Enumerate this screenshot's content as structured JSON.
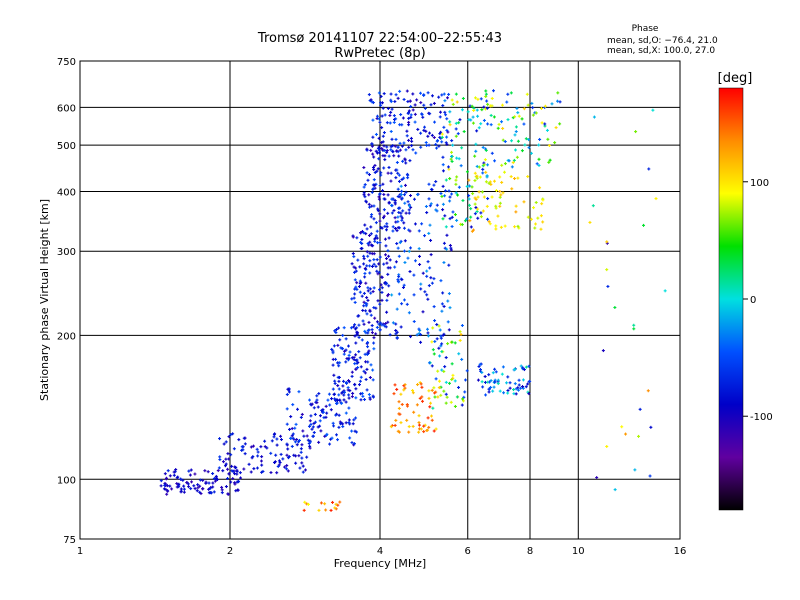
{
  "chart_data": {
    "type": "scatter",
    "title": "Tromsø 20141107 22:54:00–22:55:43",
    "subtitle": "RwPretec (8p)",
    "xlabel": "Frequency [MHz]",
    "ylabel": "Stationary phase Virtual Height [km]",
    "x_scale": "log",
    "y_scale": "log",
    "xlim": [
      1,
      16
    ],
    "ylim": [
      75,
      750
    ],
    "x_ticks": [
      1,
      2,
      4,
      6,
      8,
      10,
      16
    ],
    "y_ticks": [
      75,
      100,
      200,
      300,
      400,
      500,
      600,
      750
    ],
    "grid": true,
    "phase_box": {
      "heading": "Phase",
      "line1": "mean, sd,O: −76.4, 21.0",
      "line2": "mean, sd,X: 100.0, 27.0"
    },
    "colorbar": {
      "label": "[deg]",
      "range": [
        -180,
        180
      ],
      "ticks": [
        100,
        0,
        -100
      ],
      "colors": [
        "#ff0000",
        "#ff8c00",
        "#ffff00",
        "#00e000",
        "#00e0e0",
        "#0050ff",
        "#0000c8",
        "#6000a0",
        "#000000"
      ]
    },
    "series": [
      {
        "clusters": [
          {
            "x": [
              1.45,
              2.1
            ],
            "y": [
              93,
              105
            ],
            "n": 110,
            "phase": [
              -115,
              -70
            ]
          },
          {
            "x": [
              1.9,
              2.9
            ],
            "y": [
              103,
              125
            ],
            "n": 110,
            "phase": [
              -110,
              -60
            ]
          },
          {
            "x": [
              2.6,
              3.6
            ],
            "y": [
              118,
              155
            ],
            "n": 120,
            "phase": [
              -110,
              -40
            ]
          },
          {
            "x": [
              3.2,
              3.9
            ],
            "y": [
              145,
              210
            ],
            "n": 130,
            "phase": [
              -110,
              -40
            ]
          },
          {
            "x": [
              3.5,
              4.2
            ],
            "y": [
              200,
              330
            ],
            "n": 160,
            "phase": [
              -115,
              -50
            ]
          },
          {
            "x": [
              3.7,
              4.6
            ],
            "y": [
              330,
              500
            ],
            "n": 150,
            "phase": [
              -115,
              -50
            ]
          },
          {
            "x": [
              3.8,
              5.5
            ],
            "y": [
              480,
              650
            ],
            "n": 150,
            "phase": [
              -115,
              -40
            ]
          },
          {
            "x": [
              4.2,
              5.6
            ],
            "y": [
              190,
              420
            ],
            "n": 160,
            "phase": [
              -100,
              -20
            ]
          },
          {
            "x": [
              5.3,
              6.6
            ],
            "y": [
              330,
              650
            ],
            "n": 110,
            "phase": [
              -100,
              110
            ]
          },
          {
            "x": [
              6.4,
              9.2
            ],
            "y": [
              450,
              650
            ],
            "n": 90,
            "phase": [
              -80,
              110
            ]
          },
          {
            "x": [
              6.0,
              8.5
            ],
            "y": [
              330,
              450
            ],
            "n": 70,
            "phase": [
              70,
              130
            ]
          },
          {
            "x": [
              5.0,
              6.0
            ],
            "y": [
              140,
              210
            ],
            "n": 60,
            "phase": [
              -90,
              120
            ]
          },
          {
            "x": [
              6.3,
              8.0
            ],
            "y": [
              150,
              175
            ],
            "n": 70,
            "phase": [
              -100,
              20
            ]
          },
          {
            "x": [
              4.2,
              5.2
            ],
            "y": [
              125,
              160
            ],
            "n": 60,
            "phase": [
              100,
              170
            ]
          },
          {
            "x": [
              2.8,
              3.4
            ],
            "y": [
              86,
              90
            ],
            "n": 15,
            "phase": [
              80,
              170
            ]
          },
          {
            "x": [
              10.5,
              15.0
            ],
            "y": [
              95,
              600
            ],
            "n": 28,
            "phase": [
              -120,
              150
            ]
          }
        ]
      }
    ]
  }
}
